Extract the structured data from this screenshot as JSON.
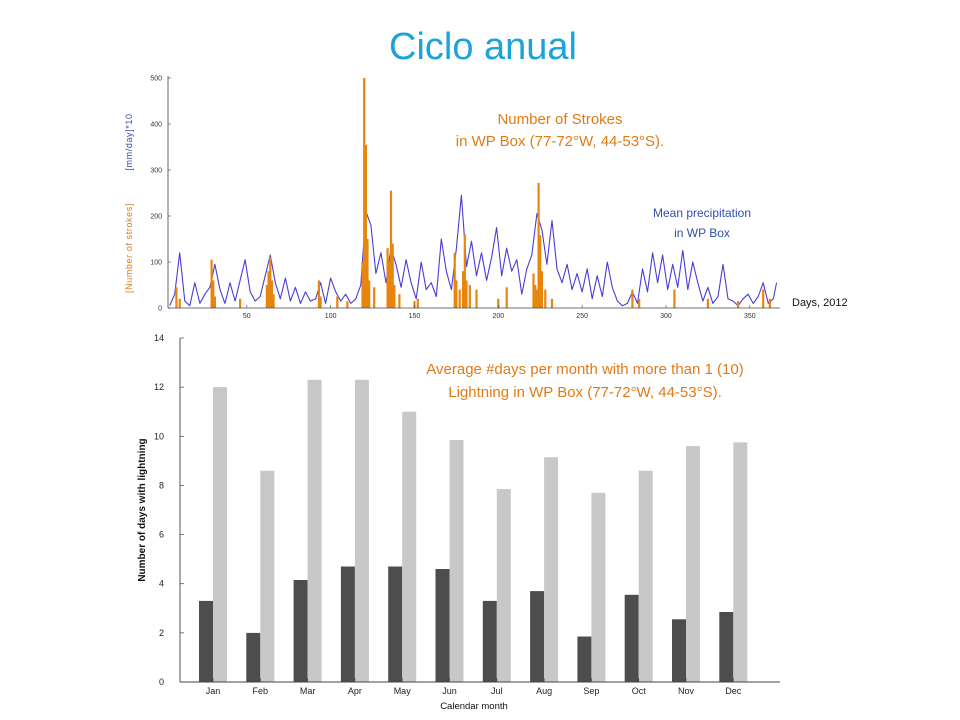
{
  "slide_title": "Ciclo anual",
  "colors": {
    "title": "#1ba3da",
    "axis": "#444444"
  },
  "chart_data": [
    {
      "type": "bar",
      "xlabel": "Days, 2012",
      "ylabel_strokes": "[Number of strokes]",
      "ylabel_precipitation": "[mm/day]*10",
      "xlim": [
        3,
        368
      ],
      "ylim": [
        0,
        500
      ],
      "xticks": [
        50,
        100,
        150,
        200,
        250,
        300,
        350
      ],
      "yticks": [
        0,
        100,
        200,
        300,
        400,
        500
      ],
      "grid": false,
      "annotations": [
        {
          "lines": [
            "Number of Strokes",
            "in WP Box (77-72°W, 44-53°S)."
          ],
          "color": "#e07b17"
        },
        {
          "lines": [
            "Mean precipitation",
            "in WP Box"
          ],
          "color": "#2f4fb0"
        }
      ],
      "series": [
        {
          "type": "bar",
          "color": "#e8850f",
          "x": [
            8,
            10,
            29,
            30,
            31,
            46,
            62,
            63,
            64,
            65,
            66,
            93,
            94,
            104,
            110,
            119,
            120,
            121,
            122,
            123,
            126,
            134,
            135,
            136,
            137,
            138,
            141,
            150,
            152,
            174,
            175,
            177,
            179,
            180,
            181,
            183,
            187,
            200,
            205,
            221,
            222,
            223,
            224,
            225,
            226,
            228,
            232,
            280,
            284,
            305,
            325,
            343,
            358,
            362
          ],
          "values": [
            45,
            20,
            105,
            60,
            25,
            20,
            50,
            80,
            110,
            60,
            30,
            60,
            25,
            25,
            15,
            100,
            500,
            355,
            150,
            60,
            45,
            130,
            100,
            255,
            140,
            50,
            30,
            15,
            20,
            120,
            60,
            40,
            80,
            160,
            60,
            50,
            40,
            20,
            45,
            75,
            50,
            40,
            272,
            158,
            80,
            40,
            20,
            40,
            20,
            40,
            20,
            15,
            40,
            20
          ]
        },
        {
          "type": "line",
          "color": "#4a3cd6",
          "x": [
            4,
            7,
            10,
            13,
            16,
            19,
            22,
            25,
            28,
            31,
            34,
            37,
            40,
            43,
            46,
            49,
            52,
            55,
            58,
            61,
            64,
            67,
            70,
            73,
            76,
            79,
            82,
            85,
            88,
            91,
            94,
            97,
            100,
            103,
            106,
            109,
            112,
            115,
            118,
            121,
            124,
            127,
            130,
            133,
            136,
            139,
            142,
            145,
            148,
            151,
            154,
            157,
            160,
            163,
            166,
            169,
            172,
            175,
            178,
            181,
            184,
            187,
            190,
            193,
            196,
            199,
            202,
            205,
            208,
            211,
            214,
            217,
            220,
            223,
            226,
            229,
            232,
            235,
            238,
            241,
            244,
            247,
            250,
            253,
            256,
            259,
            262,
            265,
            268,
            271,
            274,
            277,
            280,
            283,
            286,
            289,
            292,
            295,
            298,
            301,
            304,
            307,
            310,
            313,
            316,
            319,
            322,
            325,
            328,
            331,
            334,
            337,
            340,
            343,
            346,
            349,
            352,
            355,
            358,
            361,
            364,
            366
          ],
          "values": [
            5,
            30,
            120,
            15,
            5,
            55,
            10,
            30,
            45,
            95,
            40,
            10,
            55,
            15,
            60,
            105,
            35,
            15,
            25,
            70,
            115,
            55,
            20,
            65,
            15,
            45,
            10,
            35,
            15,
            20,
            55,
            10,
            65,
            35,
            15,
            30,
            10,
            20,
            50,
            210,
            180,
            75,
            120,
            55,
            130,
            95,
            45,
            105,
            55,
            20,
            100,
            40,
            55,
            25,
            150,
            80,
            40,
            130,
            245,
            90,
            145,
            70,
            120,
            60,
            110,
            175,
            70,
            130,
            80,
            105,
            30,
            85,
            115,
            205,
            170,
            95,
            190,
            85,
            55,
            95,
            40,
            75,
            35,
            85,
            20,
            70,
            25,
            100,
            45,
            15,
            5,
            10,
            35,
            10,
            85,
            35,
            120,
            55,
            115,
            40,
            95,
            45,
            125,
            40,
            100,
            55,
            15,
            45,
            10,
            25,
            95,
            20,
            15,
            5,
            20,
            30,
            10,
            25,
            55,
            10,
            20,
            55
          ]
        }
      ]
    },
    {
      "type": "bar",
      "categories": [
        "Jan",
        "Feb",
        "Mar",
        "Apr",
        "May",
        "Jun",
        "Jul",
        "Aug",
        "Sep",
        "Oct",
        "Nov",
        "Dec"
      ],
      "xlabel": "Calendar month",
      "ylabel": "Number of days with lightning",
      "ylim": [
        0,
        14
      ],
      "yticks": [
        0,
        2,
        4,
        6,
        8,
        10,
        12,
        14
      ],
      "grid": false,
      "annotations": [
        {
          "lines": [
            "Average #days per month with more than 1 (10)",
            "Lightning in WP Box (77-72°W, 44-53°S)."
          ],
          "color": "#e07b17"
        }
      ],
      "series": [
        {
          "color": "#4d4d4d",
          "values": [
            3.3,
            2.0,
            4.15,
            4.7,
            4.7,
            4.6,
            3.3,
            3.7,
            1.85,
            3.55,
            2.55,
            2.85
          ]
        },
        {
          "color": "#c8c8c8",
          "values": [
            12.0,
            8.6,
            12.3,
            12.3,
            11.0,
            9.85,
            7.85,
            9.15,
            7.7,
            8.6,
            9.6,
            9.75
          ]
        }
      ]
    }
  ]
}
